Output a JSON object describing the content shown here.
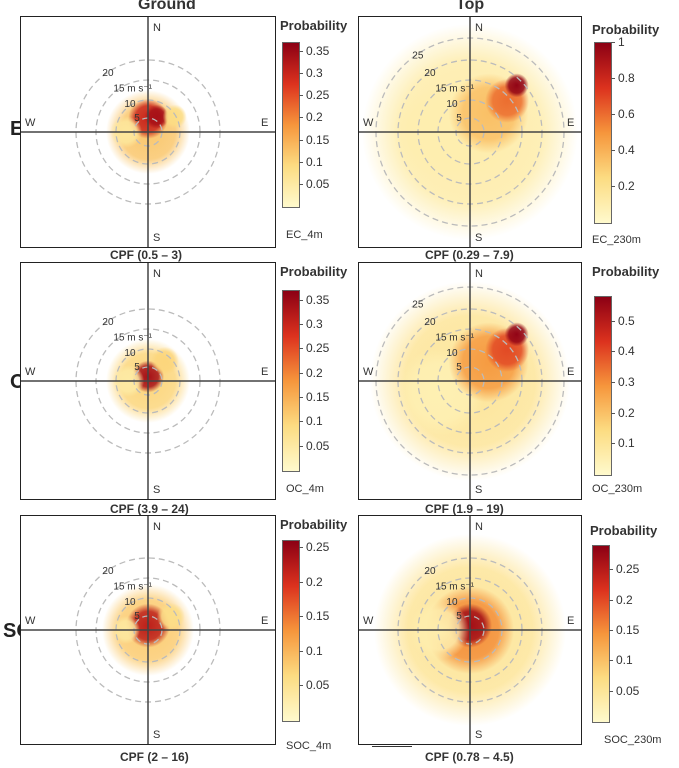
{
  "chart_data": [
    {
      "id": "ec_ground",
      "type": "polar",
      "title": "Ground",
      "row": "EC",
      "cpf": "CPF (0.5 – 3)",
      "site": "EC_4m",
      "legend": "Probability",
      "ticks": [
        "0.35",
        "0.3",
        "0.25",
        "0.2",
        "0.15",
        "0.1",
        "0.05"
      ],
      "tick_values": [
        0.35,
        0.3,
        0.25,
        0.2,
        0.15,
        0.1,
        0.05
      ],
      "max": 0.37,
      "rings": [
        "5",
        "10",
        "15 m s⁻¹",
        "20"
      ],
      "compass": [
        "N",
        "E",
        "S",
        "W"
      ],
      "blobs": [
        {
          "angle": 0,
          "radius": 0,
          "size": 42,
          "prob": 0.12
        },
        {
          "angle": 180,
          "radius": 6,
          "size": 20,
          "prob": 0.3
        },
        {
          "angle": 150,
          "radius": 8,
          "size": 12,
          "prob": 0.34
        },
        {
          "angle": 270,
          "radius": 10,
          "size": 16,
          "prob": 0.06
        },
        {
          "angle": 120,
          "radius": 14,
          "size": 12,
          "prob": 0.09
        }
      ]
    },
    {
      "id": "ec_top",
      "type": "polar",
      "title": "Top",
      "row": "EC",
      "cpf": "CPF (0.29 – 7.9)",
      "site": "EC_230m",
      "legend": "Probability",
      "ticks": [
        "1",
        "0.8",
        "0.6",
        "0.4",
        "0.2"
      ],
      "tick_values": [
        1,
        0.8,
        0.6,
        0.4,
        0.2
      ],
      "max": 1.0,
      "rings": [
        "5",
        "10",
        "15 m s⁻¹",
        "20",
        "25"
      ],
      "compass": [
        "N",
        "E",
        "S",
        "W"
      ],
      "blobs": [
        {
          "angle": 0,
          "radius": 0,
          "size": 108,
          "prob": 0.12
        },
        {
          "angle": 270,
          "radius": 14,
          "size": 46,
          "prob": 0.1
        },
        {
          "angle": 135,
          "radius": 12,
          "size": 40,
          "prob": 0.35
        },
        {
          "angle": 130,
          "radius": 22,
          "size": 22,
          "prob": 0.6
        },
        {
          "angle": 135,
          "radius": 30,
          "size": 12,
          "prob": 0.98
        }
      ]
    },
    {
      "id": "oc_ground",
      "type": "polar",
      "title": "Ground",
      "row": "OC",
      "cpf": "CPF (3.9 – 24)",
      "site": "OC_4m",
      "legend": "Probability",
      "ticks": [
        "0.35",
        "0.3",
        "0.25",
        "0.2",
        "0.15",
        "0.1",
        "0.05"
      ],
      "tick_values": [
        0.35,
        0.3,
        0.25,
        0.2,
        0.15,
        0.1,
        0.05
      ],
      "max": 0.37,
      "rings": [
        "5",
        "10",
        "15 m s⁻¹",
        "20"
      ],
      "compass": [
        "N",
        "E",
        "S",
        "W"
      ],
      "blobs": [
        {
          "angle": 0,
          "radius": 0,
          "size": 42,
          "prob": 0.1
        },
        {
          "angle": 180,
          "radius": 2,
          "size": 16,
          "prob": 0.34
        },
        {
          "angle": 270,
          "radius": 9,
          "size": 16,
          "prob": 0.05
        },
        {
          "angle": 140,
          "radius": 12,
          "size": 14,
          "prob": 0.1
        }
      ]
    },
    {
      "id": "oc_top",
      "type": "polar",
      "title": "Top",
      "row": "OC",
      "cpf": "CPF (1.9 – 19)",
      "site": "OC_230m",
      "legend": "Probability",
      "ticks": [
        "0.5",
        "0.4",
        "0.3",
        "0.2",
        "0.1"
      ],
      "tick_values": [
        0.5,
        0.4,
        0.3,
        0.2,
        0.1
      ],
      "max": 0.58,
      "rings": [
        "5",
        "10",
        "15 m s⁻¹",
        "20",
        "25"
      ],
      "compass": [
        "N",
        "E",
        "S",
        "W"
      ],
      "blobs": [
        {
          "angle": 0,
          "radius": 0,
          "size": 100,
          "prob": 0.1
        },
        {
          "angle": 290,
          "radius": 14,
          "size": 44,
          "prob": 0.05
        },
        {
          "angle": 135,
          "radius": 12,
          "size": 40,
          "prob": 0.28
        },
        {
          "angle": 130,
          "radius": 22,
          "size": 22,
          "prob": 0.4
        },
        {
          "angle": 135,
          "radius": 30,
          "size": 12,
          "prob": 0.57
        }
      ]
    },
    {
      "id": "soc_ground",
      "type": "polar",
      "title": "Ground",
      "row": "SOC",
      "cpf": "CPF (2 – 16)",
      "site": "SOC_4m",
      "legend": "Probability",
      "ticks": [
        "0.25",
        "0.2",
        "0.15",
        "0.1",
        "0.05"
      ],
      "tick_values": [
        0.25,
        0.2,
        0.15,
        0.1,
        0.05
      ],
      "max": 0.26,
      "rings": [
        "5",
        "10",
        "15 m s⁻¹",
        "20"
      ],
      "compass": [
        "N",
        "E",
        "S",
        "W"
      ],
      "blobs": [
        {
          "angle": 0,
          "radius": 0,
          "size": 46,
          "prob": 0.08
        },
        {
          "angle": 180,
          "radius": 2,
          "size": 22,
          "prob": 0.22
        },
        {
          "angle": 120,
          "radius": 12,
          "size": 14,
          "prob": 0.06
        },
        {
          "angle": 270,
          "radius": 10,
          "size": 14,
          "prob": 0.04
        }
      ]
    },
    {
      "id": "soc_top",
      "type": "polar",
      "title": "Top",
      "row": "SOC",
      "cpf": "CPF (0.78 – 4.5)",
      "site": "SOC_230m",
      "legend": "Probability",
      "ticks": [
        "0.25",
        "0.2",
        "0.15",
        "0.1",
        "0.05"
      ],
      "tick_values": [
        0.25,
        0.2,
        0.15,
        0.1,
        0.05
      ],
      "max": 0.29,
      "rings": [
        "5",
        "10",
        "15 m s⁻¹",
        "20"
      ],
      "compass": [
        "N",
        "E",
        "S",
        "W"
      ],
      "blobs": [
        {
          "angle": 0,
          "radius": 0,
          "size": 96,
          "prob": 0.05
        },
        {
          "angle": 0,
          "radius": 0,
          "size": 44,
          "prob": 0.15
        },
        {
          "angle": 180,
          "radius": 2,
          "size": 22,
          "prob": 0.27
        },
        {
          "angle": 270,
          "radius": 14,
          "size": 30,
          "prob": 0.03
        }
      ]
    }
  ],
  "labels": {
    "ground": "Ground",
    "top": "Top",
    "ec": "EC",
    "oc": "OC",
    "soc": "SOC"
  }
}
